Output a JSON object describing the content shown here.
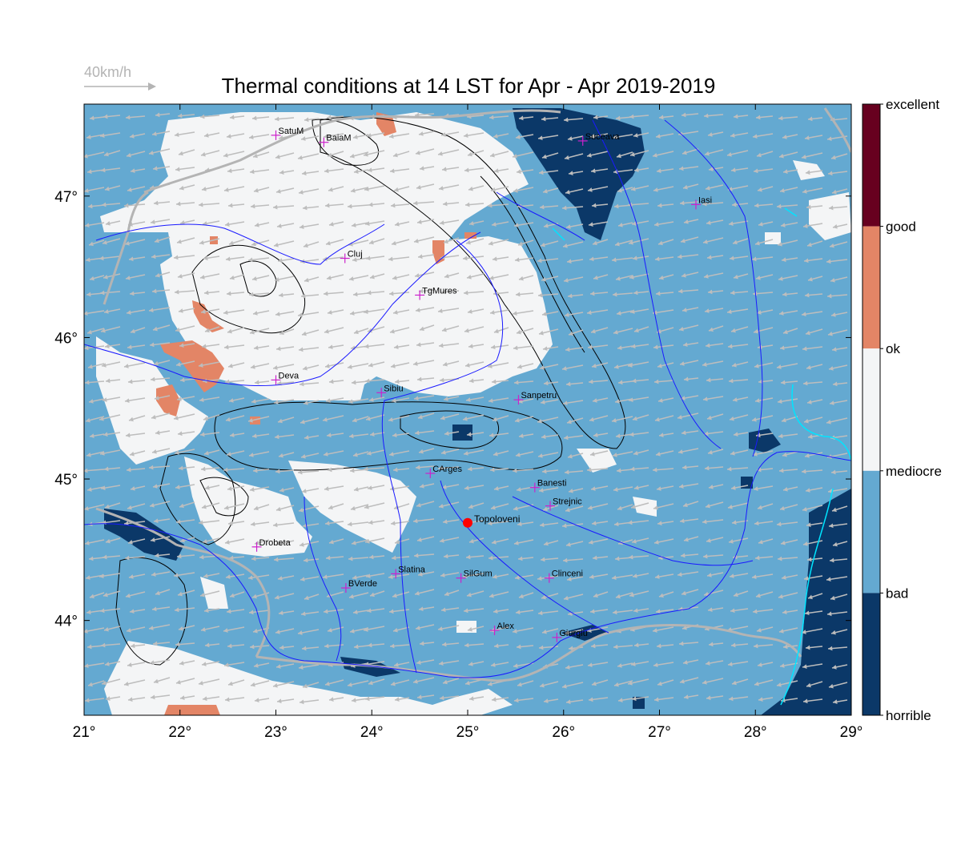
{
  "title": "Thermal conditions at 14 LST for Apr - Apr  2019-2019",
  "wind_key": {
    "label": "40km/h",
    "color": "#b4b4b4"
  },
  "axes": {
    "x_ticks": [
      "21°",
      "22°",
      "23°",
      "24°",
      "25°",
      "26°",
      "27°",
      "28°",
      "29°"
    ],
    "y_ticks": [
      "47°",
      "46°",
      "45°",
      "44°"
    ]
  },
  "legend": {
    "levels": [
      {
        "name": "excellent",
        "color": "#67001f"
      },
      {
        "name": "good",
        "color": "#e38566"
      },
      {
        "name": "ok",
        "color": "#f4f5f6"
      },
      {
        "name": "mediocre",
        "color": "#64a9d1"
      },
      {
        "name": "bad",
        "color": "#0b3868"
      },
      {
        "name": "horrible",
        "color": ""
      }
    ]
  },
  "cities": [
    {
      "name": "SatuM",
      "lon": 23.0,
      "lat": 47.43
    },
    {
      "name": "BaiaM",
      "lon": 23.5,
      "lat": 47.38
    },
    {
      "name": "Suceava",
      "lon": 26.2,
      "lat": 47.39
    },
    {
      "name": "Iasi",
      "lon": 27.38,
      "lat": 46.94
    },
    {
      "name": "Cluj",
      "lon": 23.72,
      "lat": 46.56
    },
    {
      "name": "TgMures",
      "lon": 24.5,
      "lat": 46.3
    },
    {
      "name": "Deva",
      "lon": 23.0,
      "lat": 45.7
    },
    {
      "name": "Sibiu",
      "lon": 24.1,
      "lat": 45.61
    },
    {
      "name": "Sanpetru",
      "lon": 25.53,
      "lat": 45.56
    },
    {
      "name": "CArges",
      "lon": 24.61,
      "lat": 45.04
    },
    {
      "name": "Banesti",
      "lon": 25.7,
      "lat": 44.94
    },
    {
      "name": "Strejnic",
      "lon": 25.86,
      "lat": 44.81
    },
    {
      "name": "Drobeta",
      "lon": 22.8,
      "lat": 44.52
    },
    {
      "name": "Slatina",
      "lon": 24.25,
      "lat": 44.33
    },
    {
      "name": "SilGum",
      "lon": 24.93,
      "lat": 44.3
    },
    {
      "name": "Clinceni",
      "lon": 25.85,
      "lat": 44.3
    },
    {
      "name": "BVerde",
      "lon": 23.73,
      "lat": 44.23
    },
    {
      "name": "Alex",
      "lon": 25.28,
      "lat": 43.93
    },
    {
      "name": "Giurgiu",
      "lon": 25.93,
      "lat": 43.88
    }
  ],
  "poi": {
    "name": "Topoloveni",
    "lon": 25.0,
    "lat": 44.69,
    "color": "#ff0000"
  },
  "colors": {
    "city_marker": "#cc22cc",
    "river": "#1a1aff",
    "border": "#b4b4b4",
    "contour": "#000000",
    "wind_arrow": "#bdbdbd",
    "coast": "#00e5ff"
  }
}
